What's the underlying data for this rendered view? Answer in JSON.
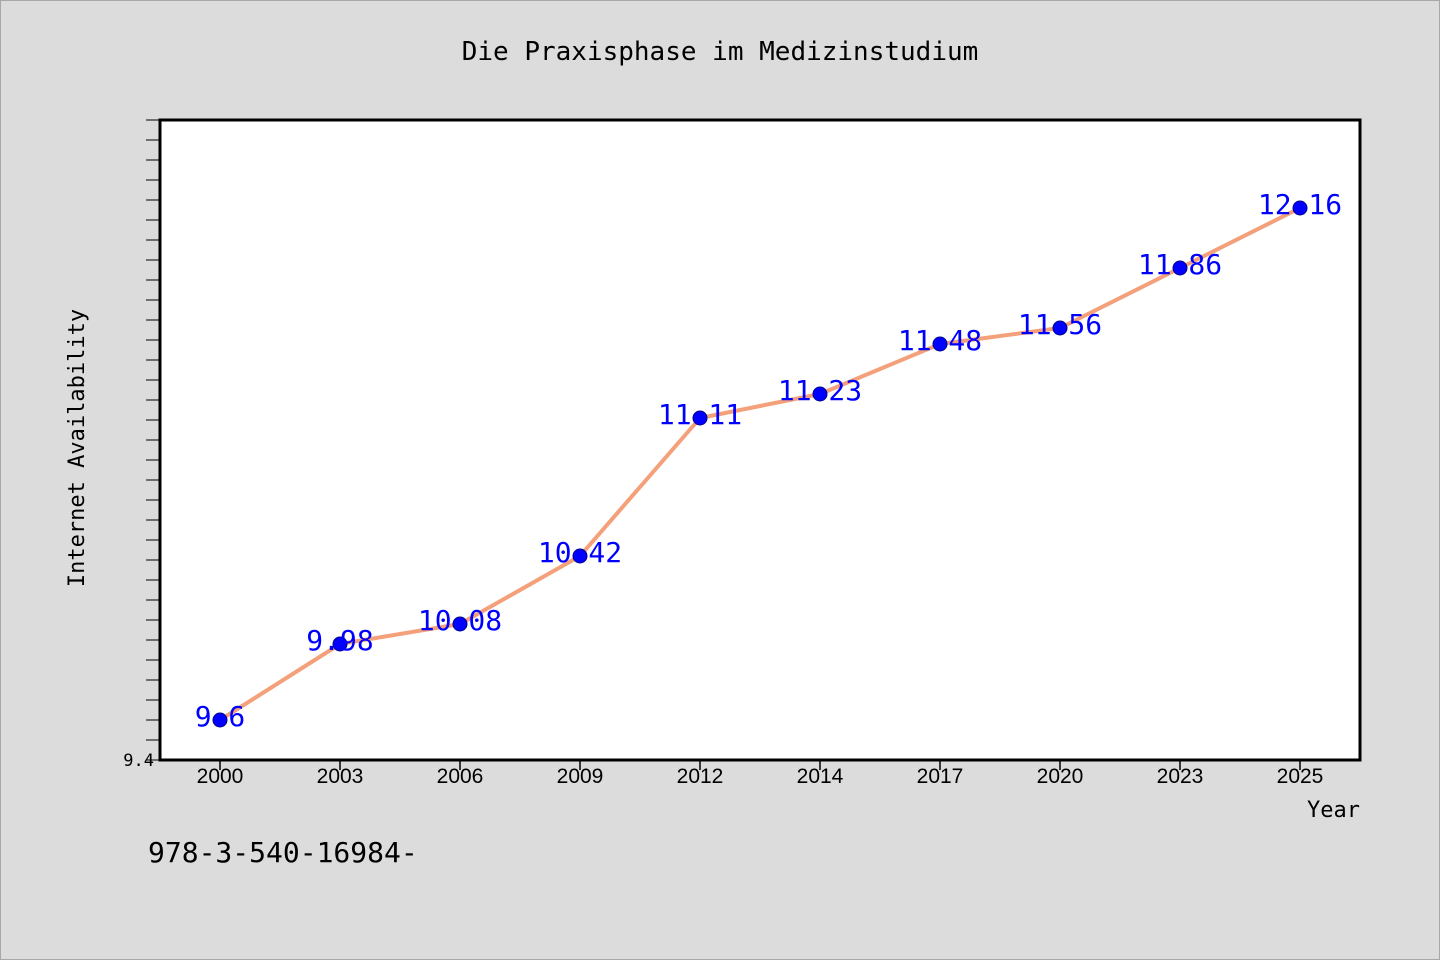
{
  "footer": {
    "code": "978-3-540-16984-"
  },
  "colors": {
    "background": "#dcdcdc",
    "plot_area": "#ffffff",
    "line": "#f4a07a",
    "marker": "#0000ff",
    "data_label": "#0000ff",
    "text": "#000000"
  },
  "chart_data": {
    "type": "line",
    "title": "Die Praxisphase im Medizinstudium",
    "xlabel": "Year",
    "ylabel": "Internet Availability",
    "categories": [
      "2000",
      "2003",
      "2006",
      "2009",
      "2012",
      "2014",
      "2017",
      "2020",
      "2023",
      "2025"
    ],
    "series": [
      {
        "values": [
          9.6,
          9.98,
          10.08,
          10.42,
          11.11,
          11.23,
          11.48,
          11.56,
          11.86,
          12.16
        ]
      }
    ],
    "data_labels": [
      "9.6",
      "9.98",
      "10.08",
      "10.42",
      "11.11",
      "11.23",
      "11.48",
      "11.56",
      "11.86",
      "12.16"
    ],
    "ylim": [
      9.4,
      12.6
    ],
    "y_tick_labels": [
      {
        "value": 9.4,
        "label": "9.4"
      }
    ],
    "y_minor_step": 0.1,
    "grid": false,
    "legend": "none"
  }
}
